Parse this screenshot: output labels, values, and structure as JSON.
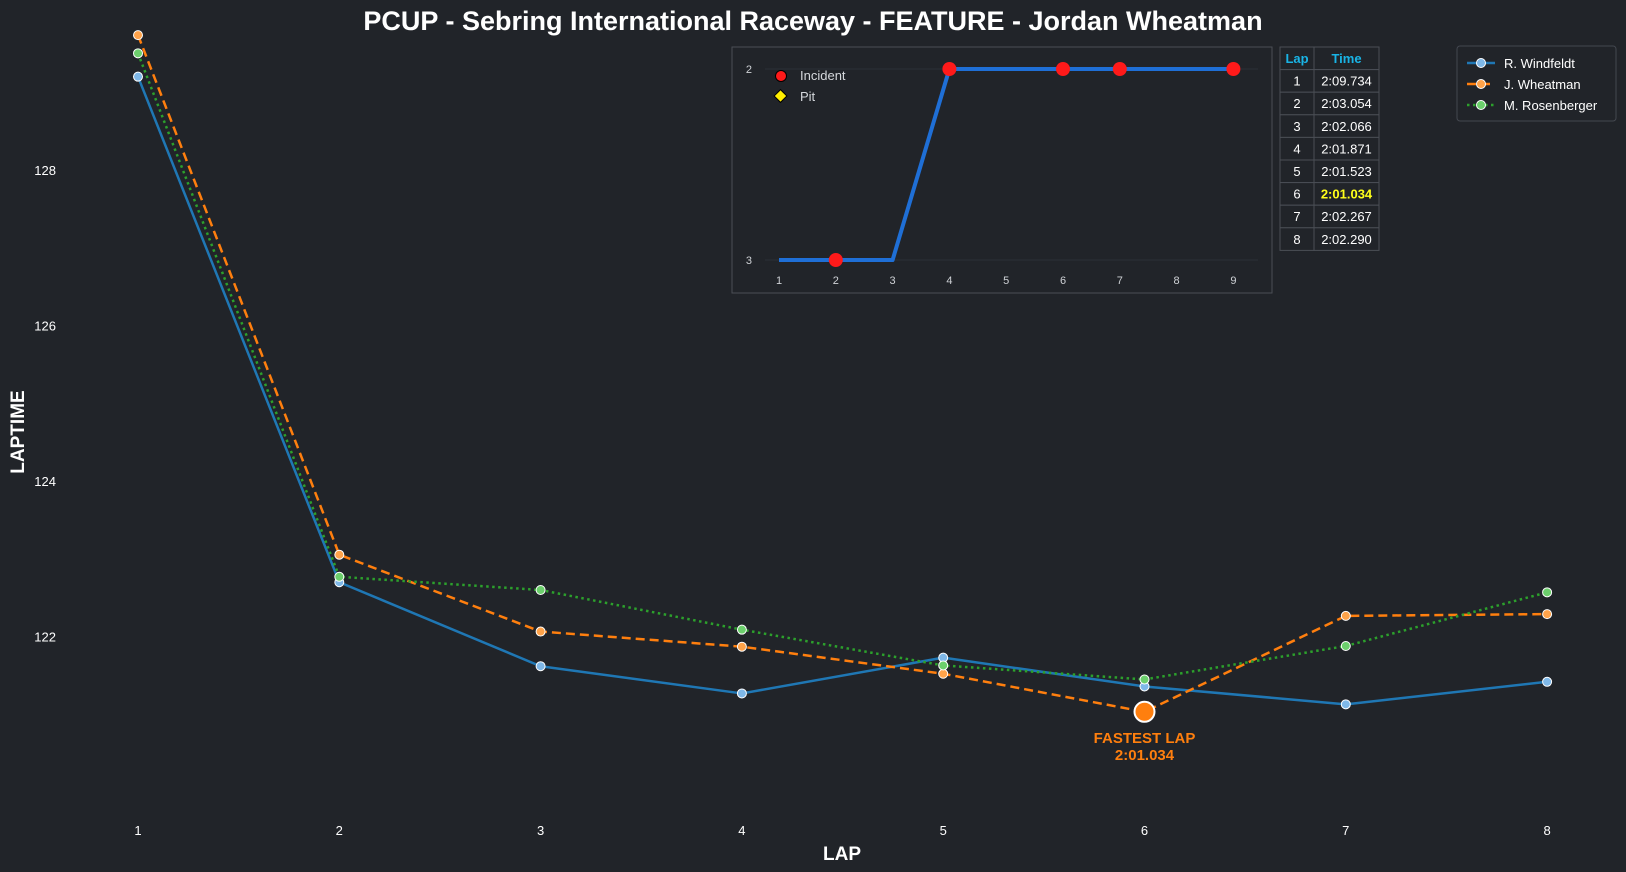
{
  "chart_data": {
    "type": "line",
    "title": "PCUP - Sebring International Raceway - FEATURE - Jordan Wheatman",
    "xlabel": "LAP",
    "ylabel": "LAPTIME",
    "x": [
      1,
      2,
      3,
      4,
      5,
      6,
      7,
      8
    ],
    "yticks": [
      122,
      124,
      126,
      128
    ],
    "ylim": [
      119.9,
      129.8
    ],
    "grid": false,
    "legend_position": "top-right",
    "colors": {
      "background": "#212429",
      "windfeldt": "#1f77b4",
      "wheatman": "#ff7f0e",
      "rosenberger": "#2ca02c"
    },
    "series": [
      {
        "name": "R. Windfeldt",
        "style": "solid",
        "values": [
          129.2,
          122.7,
          121.62,
          121.27,
          121.73,
          121.36,
          121.13,
          121.42
        ]
      },
      {
        "name": "J. Wheatman",
        "style": "dashed",
        "values": [
          129.734,
          123.054,
          122.066,
          121.871,
          121.523,
          121.034,
          122.267,
          122.29
        ]
      },
      {
        "name": "M. Rosenberger",
        "style": "dotted",
        "values": [
          129.5,
          122.77,
          122.6,
          122.09,
          121.63,
          121.45,
          121.88,
          122.57
        ]
      }
    ],
    "annotation": {
      "line1": "FASTEST LAP",
      "line2": "2:01.034",
      "lap": 6,
      "value": 121.034
    },
    "inset": {
      "type": "line",
      "x": [
        1,
        2,
        3,
        4,
        5,
        6,
        7,
        8,
        9
      ],
      "xticks": [
        "1",
        "2",
        "3",
        "4",
        "5",
        "6",
        "7",
        "8",
        "9"
      ],
      "yticks": [
        "2",
        "3"
      ],
      "values": [
        3,
        3,
        3,
        2,
        2,
        2,
        2,
        2,
        2
      ],
      "incidents": [
        2,
        4,
        6,
        7,
        9
      ],
      "legend": {
        "incident": "Incident",
        "pit": "Pit"
      },
      "line_color": "#1f6fd6",
      "incident_color": "#ff1a1a",
      "pit_color": "#ffee00"
    },
    "laps_table": {
      "headers": [
        "Lap",
        "Time"
      ],
      "rows": [
        [
          "1",
          "2:09.734"
        ],
        [
          "2",
          "2:03.054"
        ],
        [
          "3",
          "2:02.066"
        ],
        [
          "4",
          "2:01.871"
        ],
        [
          "5",
          "2:01.523"
        ],
        [
          "6",
          "2:01.034"
        ],
        [
          "7",
          "2:02.267"
        ],
        [
          "8",
          "2:02.290"
        ]
      ],
      "best_row": 6
    }
  }
}
